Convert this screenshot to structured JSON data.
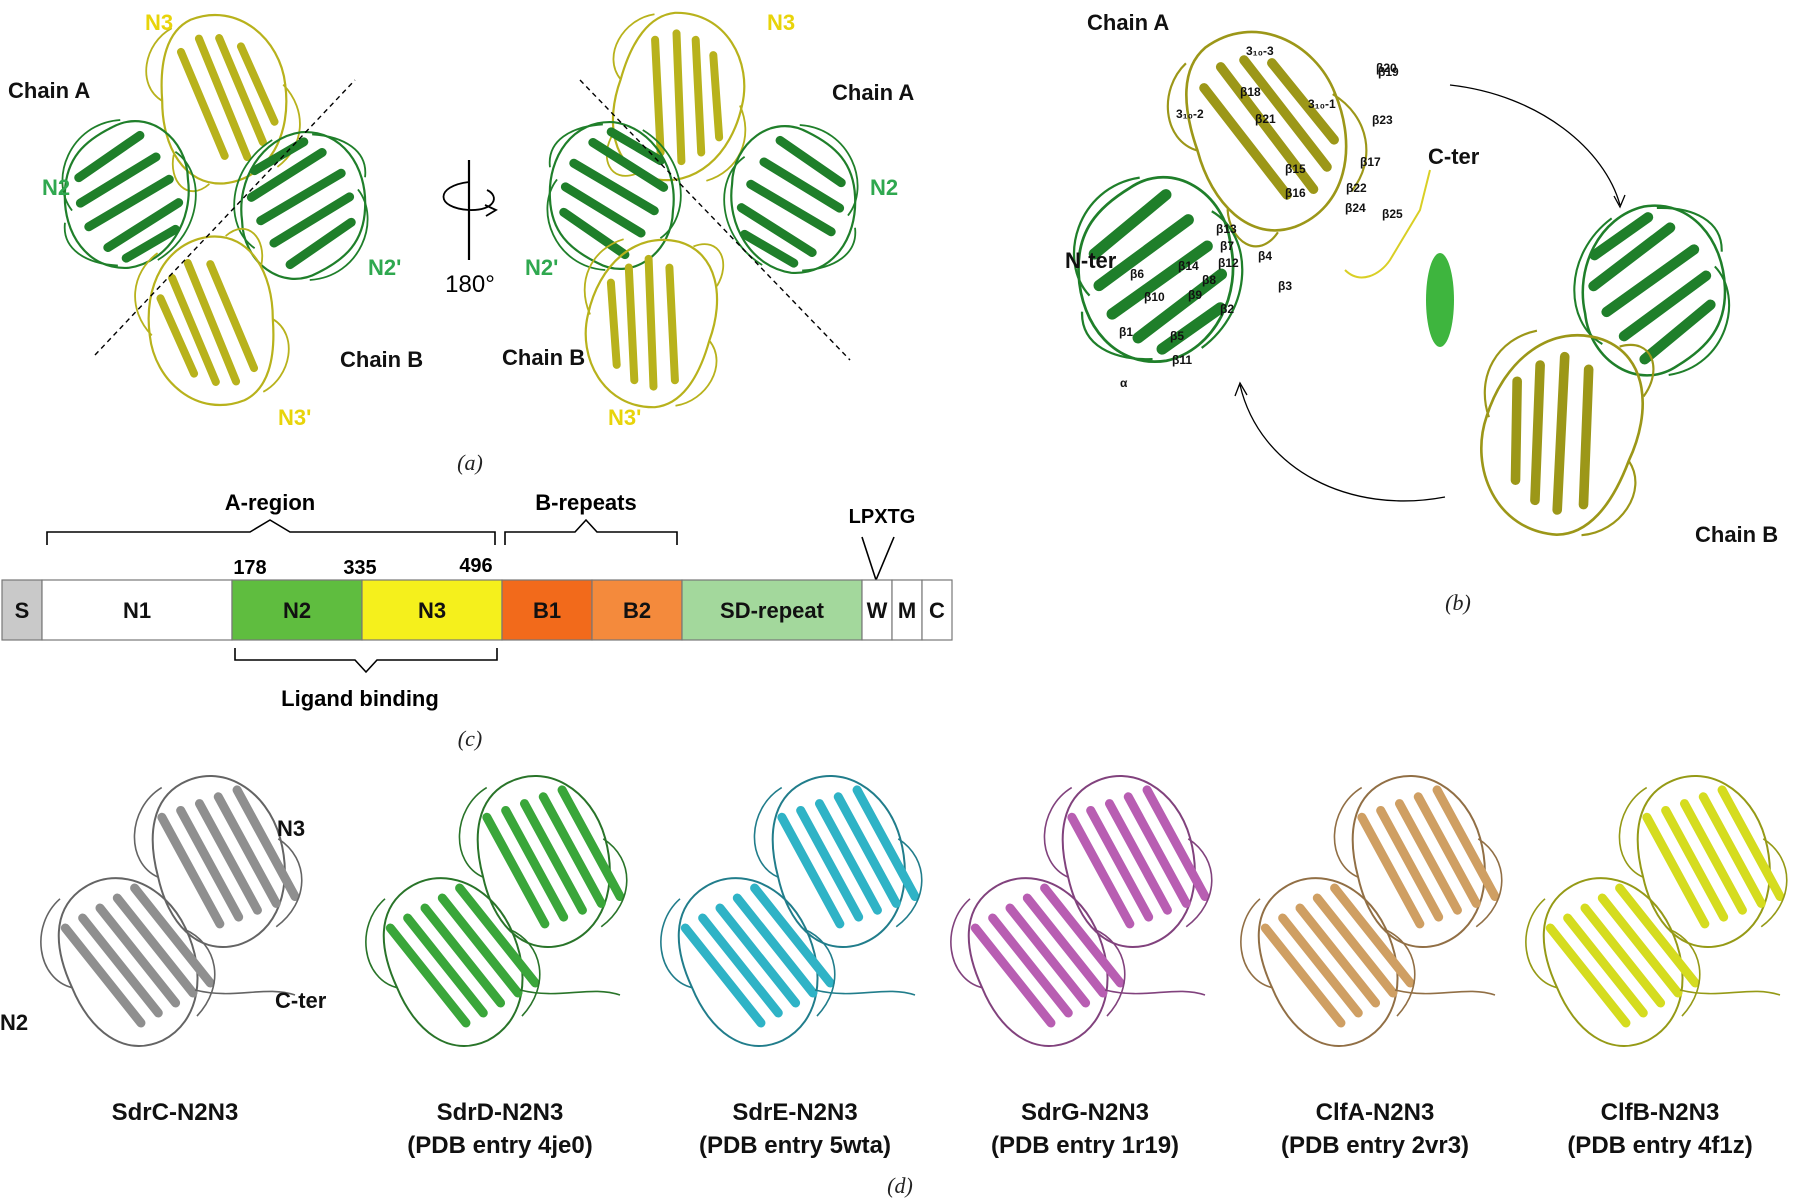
{
  "colors": {
    "green": "#3aa63a",
    "green_dark": "#1f7f2a",
    "yellow": "#e3dc2c",
    "yellow_dark": "#9c9718",
    "gray": "#8a8a8a",
    "cyan": "#3fbccb",
    "magenta": "#c068b8",
    "tan": "#d6aa6e",
    "lime": "#d7df2a",
    "label_green": "#2fa84f",
    "label_yellow": "#e8d40a"
  },
  "panel_a": {
    "caption": "(a)",
    "left": {
      "n3": "N3",
      "chain_a": "Chain A",
      "n2": "N2",
      "n2p": "N2'",
      "chain_b": "Chain B",
      "n3p": "N3'"
    },
    "right": {
      "n3": "N3",
      "chain_a": "Chain A",
      "n2": "N2",
      "n2p": "N2'",
      "chain_b": "Chain B",
      "n3p": "N3'"
    },
    "rotation": "180°"
  },
  "panel_b": {
    "caption": "(b)",
    "chain_a": "Chain A",
    "chain_b": "Chain B",
    "n_ter": "N-ter",
    "c_ter": "C-ter",
    "strands": [
      "3₁₀-3",
      "β20",
      "β19",
      "β18",
      "3₁₀-2",
      "β21",
      "3₁₀-1",
      "β23",
      "β17",
      "β15",
      "β22",
      "β16",
      "β24",
      "β25",
      "β13",
      "β7",
      "β4",
      "β6",
      "β14",
      "β12",
      "β3",
      "β10",
      "β9",
      "β8",
      "β2",
      "β1",
      "β5",
      "β11",
      "α"
    ]
  },
  "panel_c": {
    "caption": "(c)",
    "a_region": "A-region",
    "b_repeats": "B-repeats",
    "motif": "LPXTG",
    "ligand_binding": "Ligand binding",
    "residues": [
      "178",
      "335",
      "496"
    ],
    "segments": [
      {
        "label": "S",
        "color": "#c9c9c9"
      },
      {
        "label": "N1",
        "color": "#ffffff"
      },
      {
        "label": "N2",
        "color": "#5fbd3f"
      },
      {
        "label": "N3",
        "color": "#f5f01c"
      },
      {
        "label": "B1",
        "color": "#f26a1b"
      },
      {
        "label": "B2",
        "color": "#f48a3c"
      },
      {
        "label": "SD-repeat",
        "color": "#a3d89c"
      },
      {
        "label": "W",
        "color": "#ffffff"
      },
      {
        "label": "M",
        "color": "#ffffff"
      },
      {
        "label": "C",
        "color": "#ffffff"
      }
    ]
  },
  "panel_d": {
    "caption": "(d)",
    "sdrc_labels": {
      "n3": "N3",
      "n2": "N2",
      "c_ter": "C-ter"
    },
    "structures": [
      {
        "name": "SdrC-N2N3",
        "pdb": "",
        "color": "#8f8f8f"
      },
      {
        "name": "SdrD-N2N3",
        "pdb": "(PDB entry 4je0)",
        "color": "#3aa63a"
      },
      {
        "name": "SdrE-N2N3",
        "pdb": "(PDB entry 5wta)",
        "color": "#2fb3c6"
      },
      {
        "name": "SdrG-N2N3",
        "pdb": "(PDB entry 1r19)",
        "color": "#b85eb2"
      },
      {
        "name": "ClfA-N2N3",
        "pdb": "(PDB entry 2vr3)",
        "color": "#cf9f63"
      },
      {
        "name": "ClfB-N2N3",
        "pdb": "(PDB entry 4f1z)",
        "color": "#d5dc1f"
      }
    ]
  }
}
